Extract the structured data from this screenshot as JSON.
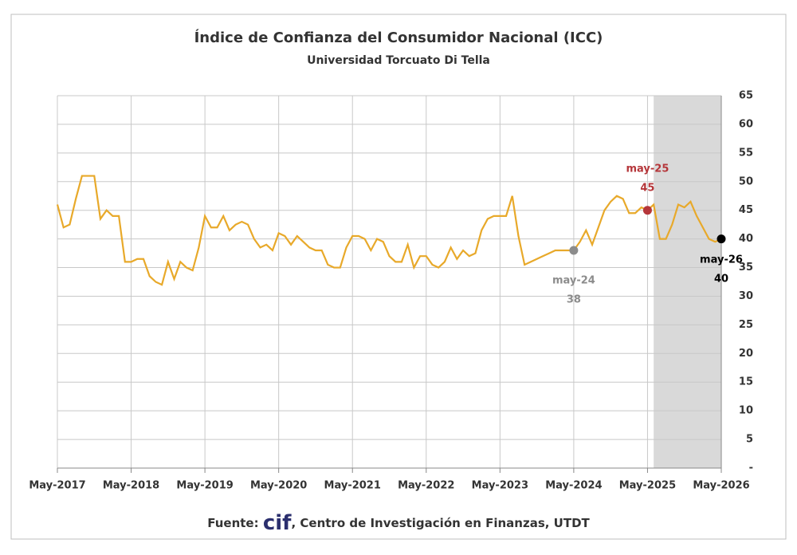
{
  "chart_data": {
    "type": "line",
    "title": "Índice de Confianza del Consumidor Nacional (ICC)",
    "subtitle": "Universidad Torcuato Di Tella",
    "categories": [
      "May-2017",
      null,
      null,
      null,
      null,
      null,
      null,
      null,
      null,
      null,
      null,
      null,
      "May-2018",
      null,
      null,
      null,
      null,
      null,
      null,
      null,
      null,
      null,
      null,
      null,
      "May-2019",
      null,
      null,
      null,
      null,
      null,
      null,
      null,
      null,
      null,
      null,
      null,
      "May-2020",
      null,
      null,
      null,
      null,
      null,
      null,
      null,
      null,
      null,
      null,
      null,
      "May-2021",
      null,
      null,
      null,
      null,
      null,
      null,
      null,
      null,
      null,
      null,
      null,
      "May-2022",
      null,
      null,
      null,
      null,
      null,
      null,
      null,
      null,
      null,
      null,
      null,
      "May-2023",
      null,
      null,
      null,
      null,
      null,
      null,
      null,
      null,
      null,
      null,
      null,
      "May-2024",
      null,
      null,
      null,
      null,
      null,
      null,
      null,
      null,
      null,
      null,
      null,
      "May-2025",
      null,
      null,
      null,
      null,
      null,
      null,
      null,
      null,
      null,
      null,
      null,
      "May-2026"
    ],
    "values": [
      46,
      42,
      42.5,
      47,
      51,
      51,
      51,
      43.5,
      45,
      44,
      44,
      36,
      36,
      36.5,
      36.5,
      33.5,
      32.5,
      32,
      36,
      33,
      36,
      35,
      34.5,
      38.5,
      44,
      42,
      42,
      44,
      41.5,
      42.5,
      43,
      42.5,
      40,
      38.5,
      39,
      38,
      41,
      40.5,
      39,
      40.5,
      39.5,
      38.5,
      38,
      38,
      35.5,
      35,
      35,
      38.5,
      40.5,
      40.5,
      40,
      38,
      40,
      39.5,
      37,
      36,
      36,
      39,
      35,
      37,
      37,
      35.5,
      35,
      36,
      38.5,
      36.5,
      38,
      37,
      37.5,
      41.5,
      43.5,
      44,
      44,
      44,
      47.5,
      40.5,
      35.5,
      36,
      36.5,
      37,
      37.5,
      38,
      38,
      38,
      38,
      39.5,
      41.5,
      39,
      42,
      45,
      46.5,
      47.5,
      47,
      44.5,
      44.5,
      45.5,
      45,
      46,
      40,
      40,
      42.5,
      46,
      45.5,
      46.5,
      44,
      42,
      40,
      39.5,
      40
    ],
    "color": "#e8a92a",
    "ylim": [
      0,
      65
    ],
    "yticks": [
      {
        "value": 0,
        "label": "-"
      },
      5,
      10,
      15,
      20,
      25,
      30,
      35,
      40,
      45,
      50,
      55,
      60,
      65
    ],
    "grid": true,
    "shade": {
      "from": "Jun-2025",
      "to": "May-2026",
      "color": "#d9d9d9"
    },
    "annotations": [
      {
        "x": "May-2024",
        "text": "may-24",
        "value": 38,
        "color": "#8c8c8c"
      },
      {
        "x": "May-2025",
        "text": "may-25",
        "value": 45,
        "color": "#b5363a"
      },
      {
        "x": "May-2026",
        "text": "may-26",
        "value": 40,
        "color": "#000000"
      }
    ],
    "footer": {
      "prefix": "Fuente:",
      "brand": "cif",
      "text": ", Centro de Investigación en Finanzas, UTDT"
    }
  }
}
